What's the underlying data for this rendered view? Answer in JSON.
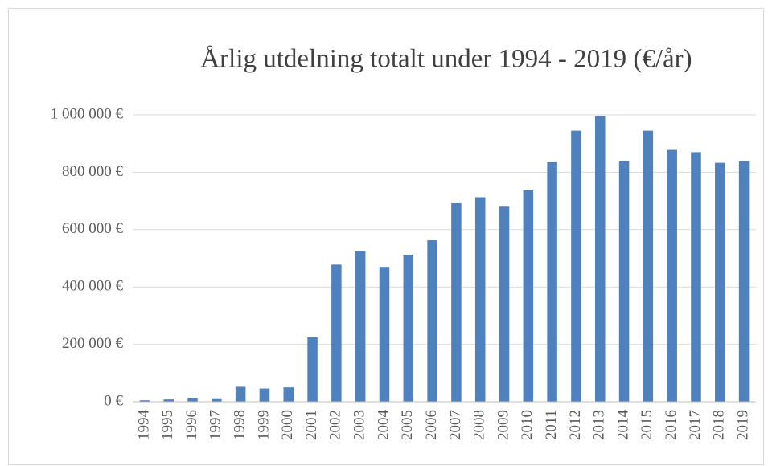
{
  "chart_data": {
    "type": "bar",
    "title": "Årlig utdelning totalt under 1994 - 2019 (€/år)",
    "categories": [
      "1994",
      "1995",
      "1996",
      "1997",
      "1998",
      "1999",
      "2000",
      "2001",
      "2002",
      "2003",
      "2004",
      "2005",
      "2006",
      "2007",
      "2008",
      "2009",
      "2010",
      "2011",
      "2012",
      "2013",
      "2014",
      "2015",
      "2016",
      "2017",
      "2018",
      "2019"
    ],
    "values": [
      5000,
      8000,
      14000,
      12000,
      52000,
      46000,
      50000,
      225000,
      478000,
      525000,
      470000,
      512000,
      563000,
      692000,
      713000,
      680000,
      737000,
      835000,
      945000,
      995000,
      838000,
      945000,
      878000,
      870000,
      833000,
      838000
    ],
    "color": "#4f81bd",
    "ylim": [
      0,
      1000000
    ],
    "yticks": [
      {
        "value": 0,
        "label": "0 €"
      },
      {
        "value": 200000,
        "label": "200 000 €"
      },
      {
        "value": 400000,
        "label": "400 000 €"
      },
      {
        "value": 600000,
        "label": "600 000 €"
      },
      {
        "value": 800000,
        "label": "800 000 €"
      },
      {
        "value": 1000000,
        "label": "1 000 000 €"
      }
    ],
    "grid": true
  }
}
